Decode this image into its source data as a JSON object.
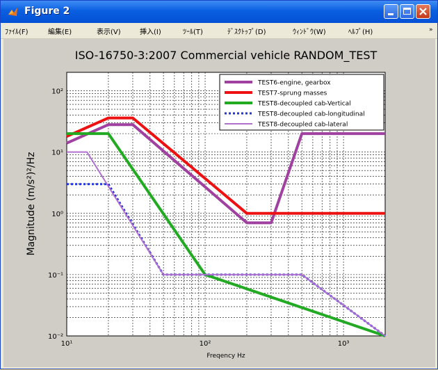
{
  "window": {
    "title": "Figure 2",
    "title_color": "#ffffff",
    "titlebar_color": "#0a5fe0"
  },
  "menu": {
    "items": [
      "ﾌｧｲﾙ(F)",
      "編集(E)",
      "表示(V)",
      "挿入(I)",
      "ﾂｰﾙ(T)",
      "ﾃﾞｽｸﾄｯﾌﾟ(D)",
      "ｳｨﾝﾄﾞｳ(W)",
      "ﾍﾙﾌﾟ(H)"
    ],
    "overflow_glyph": "»"
  },
  "chart_data": {
    "type": "line",
    "title": "ISO-16750-3:2007 Commercial vehicle RANDOM_TEST",
    "xlabel": "Freqency  Hz",
    "ylabel": "Magnitude  (m/s²)²/Hz",
    "xscale": "log",
    "yscale": "log",
    "xlim": [
      10,
      2000
    ],
    "ylim": [
      0.01,
      200
    ],
    "x_ticks": [
      10,
      100,
      1000
    ],
    "x_tick_labels": [
      "10¹",
      "10²",
      "10³"
    ],
    "y_ticks": [
      0.01,
      0.1,
      1,
      10,
      100
    ],
    "y_tick_labels": [
      "10⁻²",
      "10⁻¹",
      "10⁰",
      "10¹",
      "10²"
    ],
    "grid": true,
    "legend_position": "top-right",
    "series": [
      {
        "name": "TEST6-engine, gearbox",
        "color": "#a040a0",
        "style": "solid",
        "width": 4,
        "x": [
          10,
          20,
          30,
          200,
          300,
          500,
          2000
        ],
        "y": [
          14,
          28,
          28,
          0.7,
          0.7,
          20,
          20
        ]
      },
      {
        "name": "TEST7-sprung masses",
        "color": "#ee1111",
        "style": "solid",
        "width": 4,
        "x": [
          10,
          20,
          30,
          200,
          2000
        ],
        "y": [
          18,
          36,
          36,
          1,
          1
        ]
      },
      {
        "name": "TEST8-decoupled cab-Vertical",
        "color": "#22aa22",
        "style": "solid",
        "width": 4,
        "x": [
          10,
          20,
          100,
          2000
        ],
        "y": [
          20,
          20,
          0.1,
          0.01
        ]
      },
      {
        "name": "TEST8-decoupled cab-longitudinal",
        "color": "#2233dd",
        "style": "dashed",
        "width": 3,
        "x": [
          10,
          20,
          50,
          500,
          2000
        ],
        "y": [
          3,
          3,
          0.1,
          0.1,
          0.01
        ]
      },
      {
        "name": "TEST8-decoupled cab-lateral",
        "color": "#b070d0",
        "style": "solid",
        "width": 2,
        "x": [
          10,
          14,
          50,
          500,
          2000
        ],
        "y": [
          10,
          10,
          0.1,
          0.1,
          0.01
        ]
      }
    ]
  }
}
